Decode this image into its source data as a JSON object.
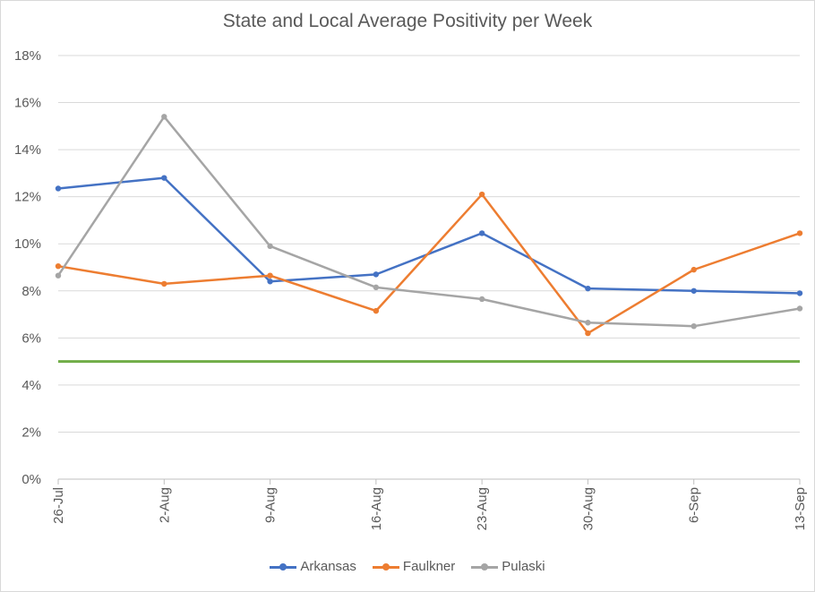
{
  "chart_data": {
    "type": "line",
    "title": "State and Local Average Positivity per Week",
    "xlabel": "",
    "ylabel": "",
    "categories": [
      "26-Jul",
      "2-Aug",
      "9-Aug",
      "16-Aug",
      "23-Aug",
      "30-Aug",
      "6-Sep",
      "13-Sep"
    ],
    "yticks": [
      "0%",
      "2%",
      "4%",
      "6%",
      "8%",
      "10%",
      "12%",
      "14%",
      "16%",
      "18%"
    ],
    "ylim": [
      0,
      18
    ],
    "grid": true,
    "legend_position": "bottom",
    "series": [
      {
        "name": "Arkansas",
        "color": "#4472c4",
        "values": [
          12.35,
          12.8,
          8.4,
          8.7,
          10.45,
          8.1,
          8.0,
          7.9
        ]
      },
      {
        "name": "Faulkner",
        "color": "#ed7d31",
        "values": [
          9.05,
          8.3,
          8.65,
          7.15,
          12.1,
          6.2,
          8.9,
          10.45
        ]
      },
      {
        "name": "Pulaski",
        "color": "#a5a5a5",
        "values": [
          8.65,
          15.4,
          9.9,
          8.15,
          7.65,
          6.65,
          6.5,
          7.25
        ]
      }
    ],
    "reference_line": {
      "value": 5,
      "color": "#70ad47"
    }
  }
}
